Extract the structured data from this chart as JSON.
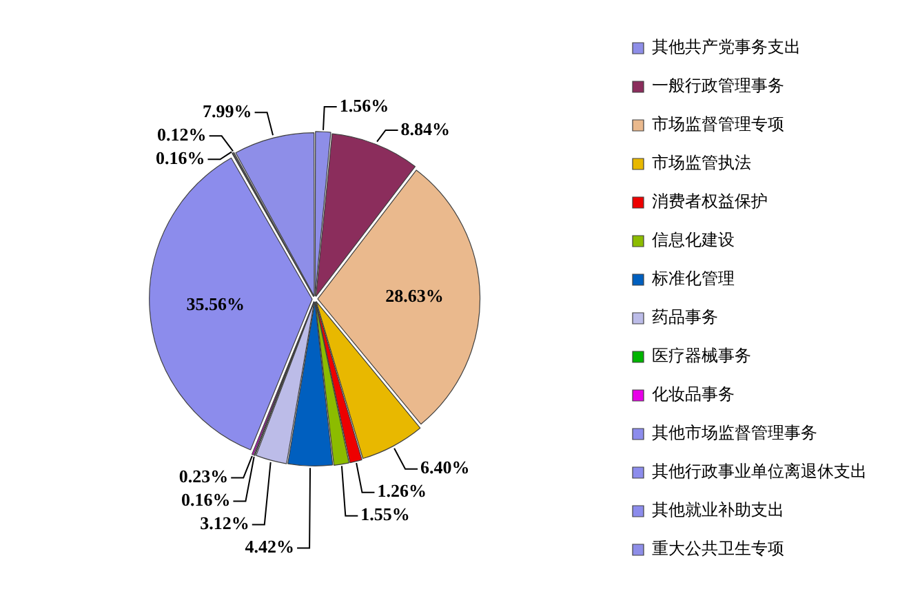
{
  "chart_data": {
    "type": "pie",
    "categories": [
      "其他共产党事务支出",
      "一般行政管理事务",
      "市场监督管理专项",
      "市场监管执法",
      "消费者权益保护",
      "信息化建设",
      "标准化管理",
      "药品事务",
      "医疗器械事务",
      "化妆品事务",
      "其他市场监督管理事务",
      "其他行政事业单位离退休支出",
      "其他就业补助支出",
      "重大公共卫生专项"
    ],
    "values": [
      1.56,
      8.84,
      28.63,
      6.4,
      1.26,
      1.55,
      4.42,
      3.12,
      0.16,
      0.23,
      35.56,
      0.16,
      0.12,
      7.99
    ],
    "value_labels": [
      "1.56%",
      "8.84%",
      "28.63%",
      "6.40%",
      "1.26%",
      "1.55%",
      "4.42%",
      "3.12%",
      "0.16%",
      "0.23%",
      "35.56%",
      "0.16%",
      "0.12%",
      "7.99%"
    ],
    "colors": [
      "#8e8ee8",
      "#8b2d5c",
      "#eab98d",
      "#e8b800",
      "#ee0000",
      "#8cbc00",
      "#005fbf",
      "#bcbce8",
      "#00b400",
      "#e800e8",
      "#8c8cec",
      "#8c8cec",
      "#8c8cec",
      "#8e8ee8"
    ],
    "legend": "right"
  }
}
